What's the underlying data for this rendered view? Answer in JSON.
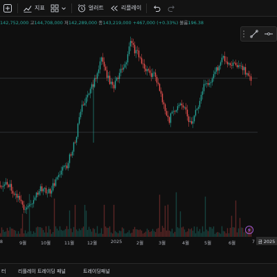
{
  "toolbar": {
    "indicators_label": "지표",
    "alerts_label": "얼러트",
    "replay_label": "리플레이"
  },
  "ohlc": {
    "open_key": "시",
    "open_val": "142,752,000",
    "high_key": "고",
    "high_val": "144,708,000",
    "low_key": "저",
    "low_val": "142,289,000",
    "close_key": "종",
    "close_val": "143,219,000",
    "change": "+467,000 (+0.33%)",
    "volume_key": "볼륨",
    "volume_val": "196.38"
  },
  "time_axis": {
    "labels": [
      "8",
      "9월",
      "10월",
      "11월",
      "12월",
      "2025",
      "2월",
      "3월",
      "4월",
      "5월",
      "6월",
      "7"
    ],
    "current_date": "금 2025"
  },
  "bottom_bar": {
    "tab_partial": "터",
    "tab_replay_trading": "리플레이 트레이딩 패널",
    "tab_trading": "트레이딩패널"
  },
  "colors": {
    "up": "#26a69a",
    "down": "#ef5350",
    "background": "#0f0f0f",
    "accent": "#a25bd6"
  }
}
